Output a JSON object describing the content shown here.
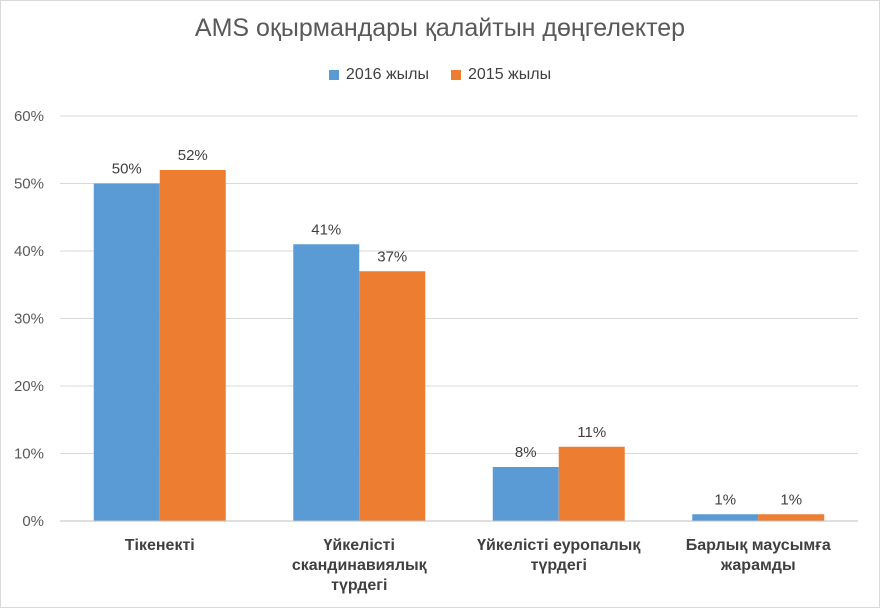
{
  "chart_data": {
    "type": "bar",
    "title": "AMS оқырмандары қалайтын дөңгелектер",
    "categories": [
      [
        "Тікенекті"
      ],
      [
        "Үйкелісті",
        "скандинавиялық",
        "түрдегі"
      ],
      [
        "Үйкелісті еуропалық",
        "түрдегі"
      ],
      [
        "Барлық маусымға",
        "жарамды"
      ]
    ],
    "series": [
      {
        "name": "2016 жылы",
        "color": "#5b9bd5",
        "values": [
          50,
          41,
          8,
          1
        ],
        "labels": [
          "50%",
          "41%",
          "8%",
          "1%"
        ]
      },
      {
        "name": "2015 жылы",
        "color": "#ed7d31",
        "values": [
          52,
          37,
          11,
          1
        ],
        "labels": [
          "52%",
          "37%",
          "11%",
          "1%"
        ]
      }
    ],
    "ylim": [
      0,
      60
    ],
    "yticks": [
      "0%",
      "10%",
      "20%",
      "30%",
      "40%",
      "50%",
      "60%"
    ],
    "grid": true,
    "legend_position": "top"
  }
}
